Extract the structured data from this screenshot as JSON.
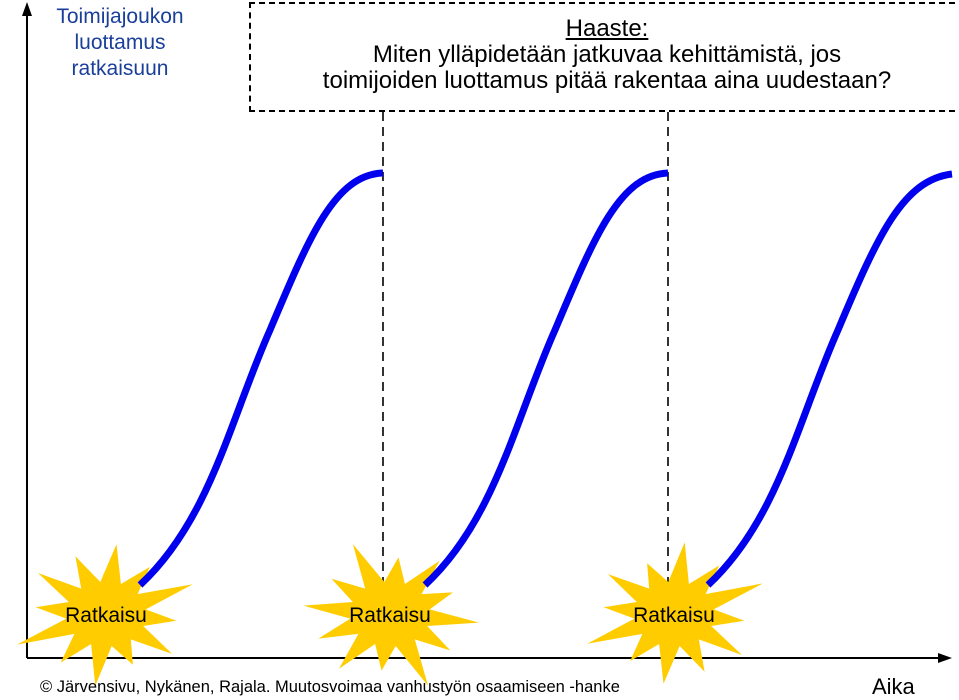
{
  "axes": {
    "y_label": "Toimijajoukon luottamus ratkaisuun",
    "y_label_lines": [
      "Toimijajoukon",
      "luottamus",
      "ratkaisuun"
    ],
    "x_label": "Aika"
  },
  "challenge": {
    "title": "Haaste:",
    "line1": "Miten ylläpidetään jatkuvaa kehittämistä, jos",
    "line2": "toimijoiden luottamus pitää rakentaa aina uudestaan?"
  },
  "bursts": [
    {
      "label": "Ratkaisu"
    },
    {
      "label": "Ratkaisu"
    },
    {
      "label": "Ratkaisu"
    }
  ],
  "credit": "© Järvensivu, Nykänen, Rajala. Muutosvoimaa vanhustyön osaamiseen -hanke",
  "colors": {
    "curve": "#0000ee",
    "burst": "#ffcc00",
    "y_label": "#1a3f9a",
    "axis": "#000000"
  }
}
